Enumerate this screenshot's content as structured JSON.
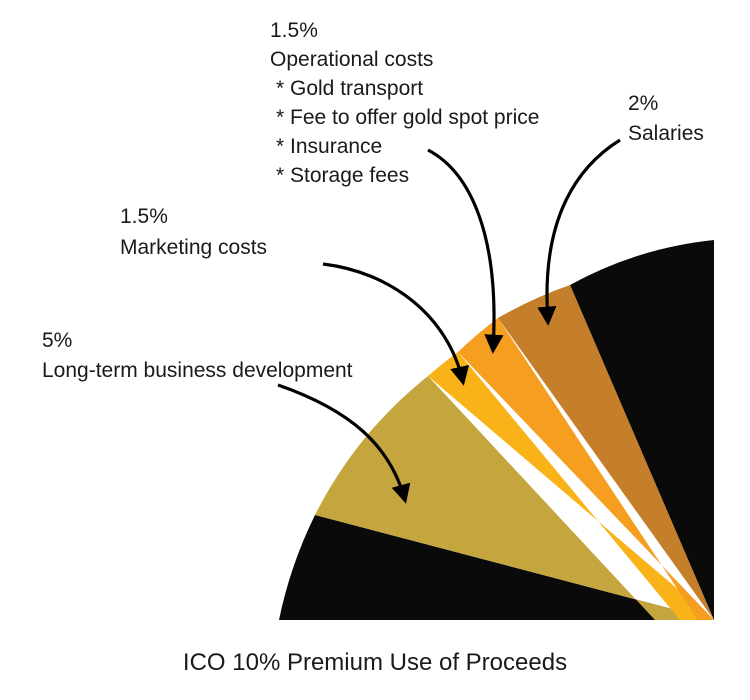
{
  "chart_data": {
    "type": "pie",
    "title": "ICO 10%  Premium Use of Proceeds",
    "colors": {
      "background_slice": "#0a0a0a",
      "arrow": "#000000"
    },
    "slices": [
      {
        "value": "5%",
        "label": "Long-term business development",
        "color": "#c4a53e",
        "bullets": []
      },
      {
        "value": "1.5%",
        "label": "Marketing costs",
        "color": "#fab219",
        "bullets": []
      },
      {
        "value": "1.5%",
        "label": "Operational costs",
        "color": "#f59e20",
        "bullets": [
          "* Gold transport",
          "* Fee to offer gold spot price",
          "* Insurance",
          "* Storage fees"
        ]
      },
      {
        "value": "2%",
        "label": "Salaries",
        "color": "#c57e2a",
        "bullets": []
      }
    ]
  }
}
